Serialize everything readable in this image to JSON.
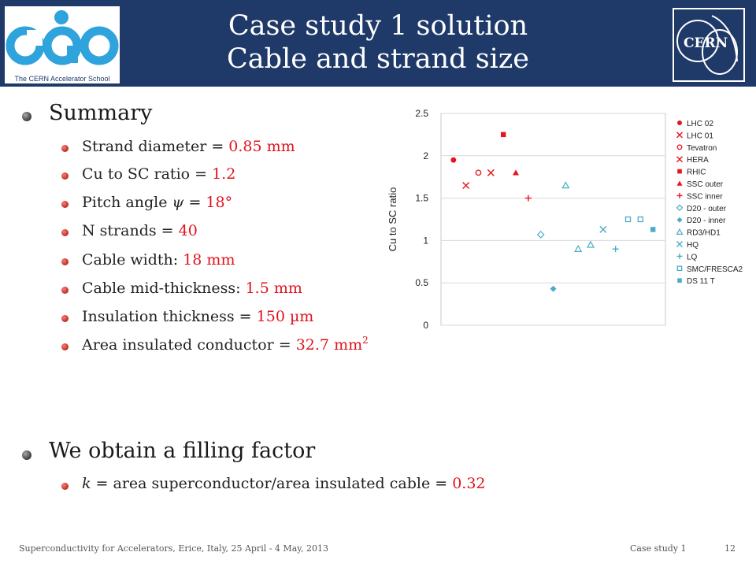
{
  "header": {
    "title_line1": "Case study 1 solution",
    "title_line2": "Cable and strand size",
    "left_logo_caption": "The CERN Accelerator School",
    "right_logo_text": "CERN"
  },
  "summary": {
    "heading": "Summary",
    "items": [
      {
        "label": "Strand diameter = ",
        "value": "0.85 mm"
      },
      {
        "label": "Cu to SC ratio = ",
        "value": "1.2"
      },
      {
        "label": "Pitch angle ",
        "symbol": "ψ",
        "label2": " = ",
        "value": "18°"
      },
      {
        "label": "N strands = ",
        "value": "40"
      },
      {
        "label": "Cable width: ",
        "value": "18 mm"
      },
      {
        "label": "Cable mid-thickness: ",
        "value": "1.5 mm"
      },
      {
        "label": "Insulation thickness = ",
        "value": "150 µm"
      },
      {
        "label": "Area insulated conductor = ",
        "value": "32.7 mm",
        "sup": "2"
      }
    ]
  },
  "filling": {
    "heading": "We obtain a filling factor",
    "k": "k",
    "label": " = area superconductor/area insulated cable = ",
    "value": "0.32"
  },
  "footer": {
    "left": "Superconductivity for Accelerators, Erice, Italy, 25 April - 4 May, 2013",
    "middle": "Case study 1",
    "page": "12"
  },
  "colors": {
    "header_bg": "#1f3a68",
    "accent_red": "#e0141e",
    "series_red": "#e8141c",
    "series_blue": "#4bacc6"
  },
  "chart_data": {
    "type": "scatter",
    "ylabel": "Cu to SC ratio",
    "ylim": [
      0,
      2.5
    ],
    "yticks": [
      "0",
      "0.5",
      "1",
      "1.5",
      "2",
      "2.5"
    ],
    "grid": true,
    "legend_position": "right",
    "series": [
      {
        "name": "LHC 02",
        "x": 1,
        "y": 1.95,
        "marker": "circle-filled",
        "color": "#e8141c"
      },
      {
        "name": "LHC 01",
        "x": 2,
        "y": 1.65,
        "marker": "x",
        "color": "#e8141c"
      },
      {
        "name": "Tevatron",
        "x": 3,
        "y": 1.8,
        "marker": "circle-open",
        "color": "#e8141c"
      },
      {
        "name": "HERA",
        "x": 4,
        "y": 1.8,
        "marker": "x",
        "color": "#e8141c"
      },
      {
        "name": "RHIC",
        "x": 5,
        "y": 2.25,
        "marker": "square-filled",
        "color": "#e8141c"
      },
      {
        "name": "SSC outer",
        "x": 6,
        "y": 1.8,
        "marker": "triangle-filled",
        "color": "#e8141c"
      },
      {
        "name": "SSC inner",
        "x": 7,
        "y": 1.5,
        "marker": "plus",
        "color": "#e8141c"
      },
      {
        "name": "D20 - outer",
        "x": 8,
        "y": 1.07,
        "marker": "diamond-open",
        "color": "#4bacc6"
      },
      {
        "name": "D20 - inner",
        "x": 9,
        "y": 0.43,
        "marker": "diamond-filled",
        "color": "#4bacc6"
      },
      {
        "name": "RD3/HD1",
        "x": [
          10,
          11,
          12
        ],
        "y": [
          1.65,
          0.9,
          0.95
        ],
        "marker": "triangle-open",
        "color": "#4bacc6"
      },
      {
        "name": "HQ",
        "x": 13,
        "y": 1.13,
        "marker": "x",
        "color": "#4bacc6"
      },
      {
        "name": "LQ",
        "x": 14,
        "y": 0.9,
        "marker": "plus",
        "color": "#4bacc6"
      },
      {
        "name": "SMC/FRESCA2",
        "x": [
          15,
          16
        ],
        "y": [
          1.25,
          1.25
        ],
        "marker": "square-open",
        "color": "#4bacc6"
      },
      {
        "name": "DS 11 T",
        "x": 17,
        "y": 1.13,
        "marker": "square-filled",
        "color": "#4bacc6"
      }
    ]
  }
}
